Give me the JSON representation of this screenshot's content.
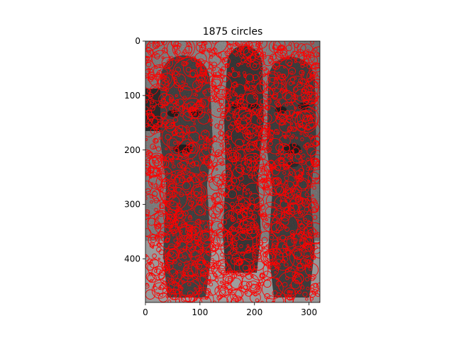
{
  "chart_data": {
    "type": "image",
    "title": "1875 circles",
    "xlim": [
      0,
      320
    ],
    "ylim": [
      480,
      0
    ],
    "x_ticks": [
      0,
      100,
      200,
      300
    ],
    "y_ticks": [
      0,
      100,
      200,
      300,
      400
    ],
    "x_tick_labels": [
      "0",
      "100",
      "200",
      "300"
    ],
    "y_tick_labels": [
      "0",
      "100",
      "200",
      "300",
      "400"
    ],
    "image_width": 320,
    "image_height": 480,
    "circle_count": 1875,
    "circle_color": "#ff0000",
    "image_content": "grayscale photo of three carved stone totem figures",
    "circles": [
      [
        80,
        60,
        30
      ],
      [
        65,
        190,
        22
      ],
      [
        175,
        175,
        18
      ],
      [
        180,
        230,
        15
      ],
      [
        250,
        255,
        28
      ],
      [
        270,
        285,
        15
      ],
      [
        65,
        275,
        38
      ],
      [
        45,
        360,
        22
      ],
      [
        70,
        355,
        14
      ],
      [
        160,
        330,
        20
      ],
      [
        180,
        360,
        30
      ],
      [
        255,
        340,
        25
      ],
      [
        275,
        370,
        16
      ],
      [
        80,
        450,
        20
      ],
      [
        160,
        440,
        18
      ],
      [
        265,
        445,
        22
      ],
      [
        230,
        80,
        20
      ],
      [
        140,
        80,
        18
      ],
      [
        25,
        130,
        14
      ],
      [
        205,
        30,
        12
      ],
      [
        40,
        40,
        10
      ],
      [
        300,
        30,
        10
      ],
      [
        120,
        400,
        15
      ],
      [
        230,
        420,
        14
      ],
      [
        120,
        220,
        12
      ],
      [
        300,
        150,
        12
      ],
      [
        15,
        240,
        10
      ],
      [
        305,
        420,
        12
      ],
      [
        100,
        310,
        10
      ],
      [
        200,
        290,
        10
      ],
      [
        40,
        280,
        14
      ],
      [
        150,
        380,
        12
      ]
    ]
  }
}
